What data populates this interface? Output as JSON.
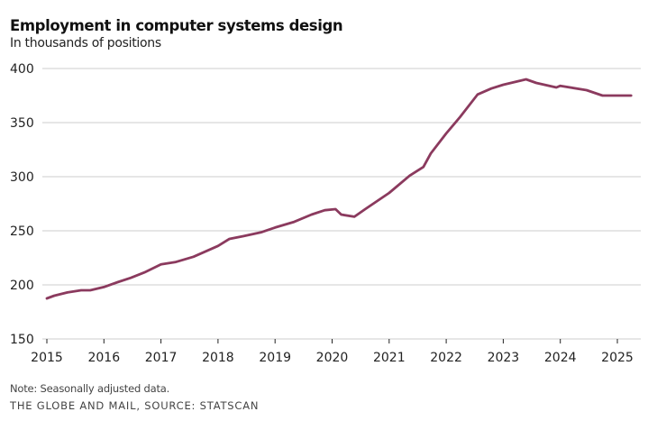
{
  "chart_data": {
    "type": "line",
    "title": "Employment in computer systems design",
    "subtitle": "In thousands of positions",
    "xlabel": "",
    "ylabel": "",
    "ylim": [
      150,
      400
    ],
    "xlim": [
      2015,
      2025.4
    ],
    "yticks": [
      150,
      200,
      250,
      300,
      350,
      400
    ],
    "xticks": [
      2015,
      2016,
      2017,
      2018,
      2019,
      2020,
      2021,
      2022,
      2023,
      2024,
      2025
    ],
    "grid": "horizontal",
    "legend": "none",
    "series": [
      {
        "name": "Employment in computer systems design",
        "color": "#8b3a5e",
        "x": [
          2015.0,
          2015.13,
          2015.36,
          2015.6,
          2015.76,
          2016.0,
          2016.24,
          2016.47,
          2016.71,
          2017.0,
          2017.25,
          2017.57,
          2018.0,
          2018.2,
          2018.44,
          2018.75,
          2019.0,
          2019.32,
          2019.64,
          2019.87,
          2020.06,
          2020.16,
          2020.39,
          2020.58,
          2021.0,
          2021.36,
          2021.6,
          2021.73,
          2022.0,
          2022.24,
          2022.55,
          2022.79,
          2023.0,
          2023.4,
          2023.58,
          2023.93,
          2024.0,
          2024.46,
          2024.74,
          2025.0,
          2025.24
        ],
        "values": [
          187.5,
          190,
          193,
          195,
          195,
          198,
          202.5,
          206.5,
          211.5,
          219,
          221,
          226,
          236,
          242.5,
          245,
          248.5,
          253,
          258,
          265,
          269,
          270,
          265,
          263,
          270,
          285,
          301,
          309,
          321.5,
          340,
          355,
          376,
          381.5,
          385,
          390,
          386.7,
          382.5,
          384,
          380,
          375,
          375,
          375
        ]
      }
    ]
  },
  "footer": {
    "note": "Note: Seasonally adjusted data.",
    "source": "THE GLOBE AND MAIL, SOURCE: STATSCAN"
  }
}
